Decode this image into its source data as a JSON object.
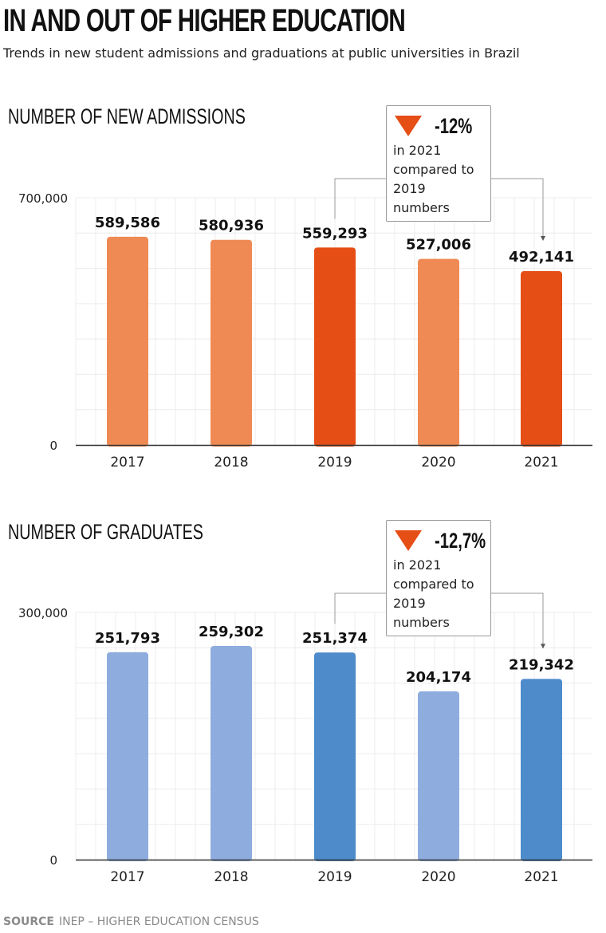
{
  "title": "IN AND OUT OF HIGHER EDUCATION",
  "subtitle": "Trends in new student admissions and graduations at public universities in Brazil",
  "source": {
    "label": "SOURCE",
    "text": "INEP – HIGHER EDUCATION CENSUS"
  },
  "colors": {
    "admissions_light": "#f08a55",
    "admissions_dark": "#e54e15",
    "graduates_light": "#8eadde",
    "graduates_dark": "#4d8bcb",
    "grid": "#ececec",
    "axis": "#333333",
    "connector": "#999999"
  },
  "chart_data": [
    {
      "type": "bar",
      "title": "NUMBER OF NEW ADMISSIONS",
      "categories": [
        "2017",
        "2018",
        "2019",
        "2020",
        "2021"
      ],
      "values": [
        589586,
        580936,
        559293,
        527006,
        492141
      ],
      "value_labels": [
        "589,586",
        "580,936",
        "559,293",
        "527,006",
        "492,141"
      ],
      "highlighted": [
        "2019",
        "2021"
      ],
      "ylim": [
        0,
        700000
      ],
      "ytick_labels": [
        "0",
        "700,000"
      ],
      "grid": true,
      "annotation": {
        "pct": "-12%",
        "line1": "in 2021",
        "line2": "compared to",
        "line3": "2019 numbers"
      }
    },
    {
      "type": "bar",
      "title": "NUMBER OF GRADUATES",
      "categories": [
        "2017",
        "2018",
        "2019",
        "2020",
        "2021"
      ],
      "values": [
        251793,
        259302,
        251374,
        204174,
        219342
      ],
      "value_labels": [
        "251,793",
        "259,302",
        "251,374",
        "204,174",
        "219,342"
      ],
      "highlighted": [
        "2019",
        "2021"
      ],
      "ylim": [
        0,
        300000
      ],
      "ytick_labels": [
        "0",
        "300,000"
      ],
      "grid": true,
      "annotation": {
        "pct": "-12,7%",
        "line1": "in 2021",
        "line2": "compared to",
        "line3": "2019 numbers"
      }
    }
  ]
}
